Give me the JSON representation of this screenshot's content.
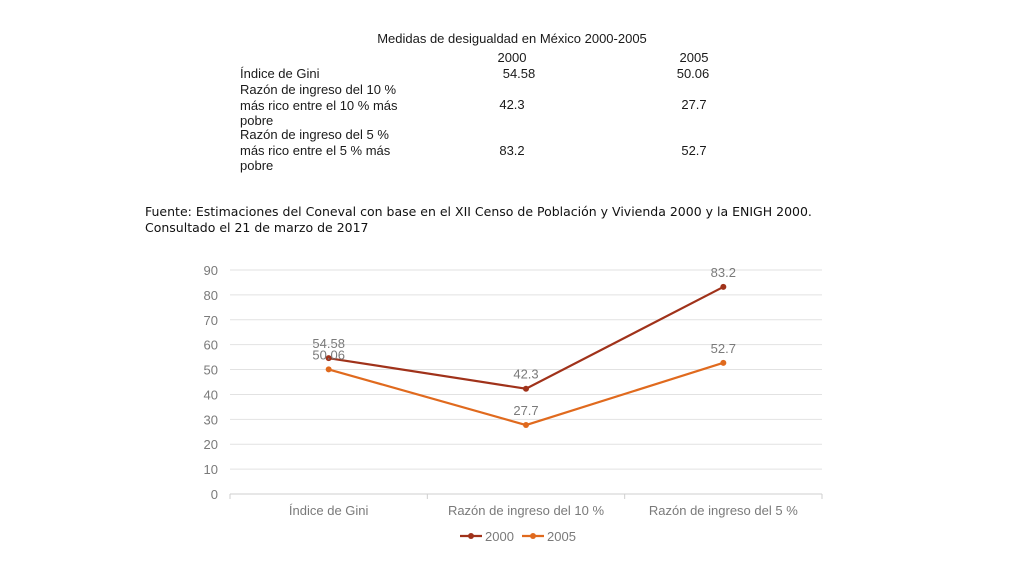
{
  "table": {
    "title": "Medidas de desigualdad en México 2000-2005",
    "headers": [
      "2000",
      "2005"
    ],
    "rows": [
      {
        "label_lines": [
          "Índice de Gini"
        ],
        "v2000": "54.58",
        "v2005": "50.06"
      },
      {
        "label_lines": [
          "Razón de ingreso del 10 %",
          "más rico entre el 10 % más",
          "pobre"
        ],
        "v2000": "42.3",
        "v2005": "27.7"
      },
      {
        "label_lines": [
          "Razón de ingreso del 5 %",
          "más rico entre el 5 % más",
          "pobre"
        ],
        "v2000": "83.2",
        "v2005": "52.7"
      }
    ]
  },
  "source": {
    "line1": "Fuente: Estimaciones del Coneval con base en el XII Censo de Población y Vivienda 2000 y la ENIGH 2000.",
    "line2": "Consultado el 21 de marzo de 2017"
  },
  "chart_data": {
    "type": "line",
    "categories": [
      "Índice de Gini",
      "Razón de ingreso del 10 %",
      "Razón de ingreso del 5 %"
    ],
    "series": [
      {
        "name": "2000",
        "values": [
          54.58,
          42.3,
          83.2
        ],
        "labels": [
          "54.58",
          "42.3",
          "83.2"
        ],
        "color": "#A0321A"
      },
      {
        "name": "2005",
        "values": [
          50.06,
          27.7,
          52.7
        ],
        "labels": [
          "50.06",
          "27.7",
          "52.7"
        ],
        "color": "#E06A1E"
      }
    ],
    "ylim": [
      0,
      90
    ],
    "yticks": [
      "0",
      "10",
      "20",
      "30",
      "40",
      "50",
      "60",
      "70",
      "80",
      "90"
    ],
    "grid": true,
    "legend": "bottom",
    "title": "",
    "xlabel": "",
    "ylabel": ""
  }
}
